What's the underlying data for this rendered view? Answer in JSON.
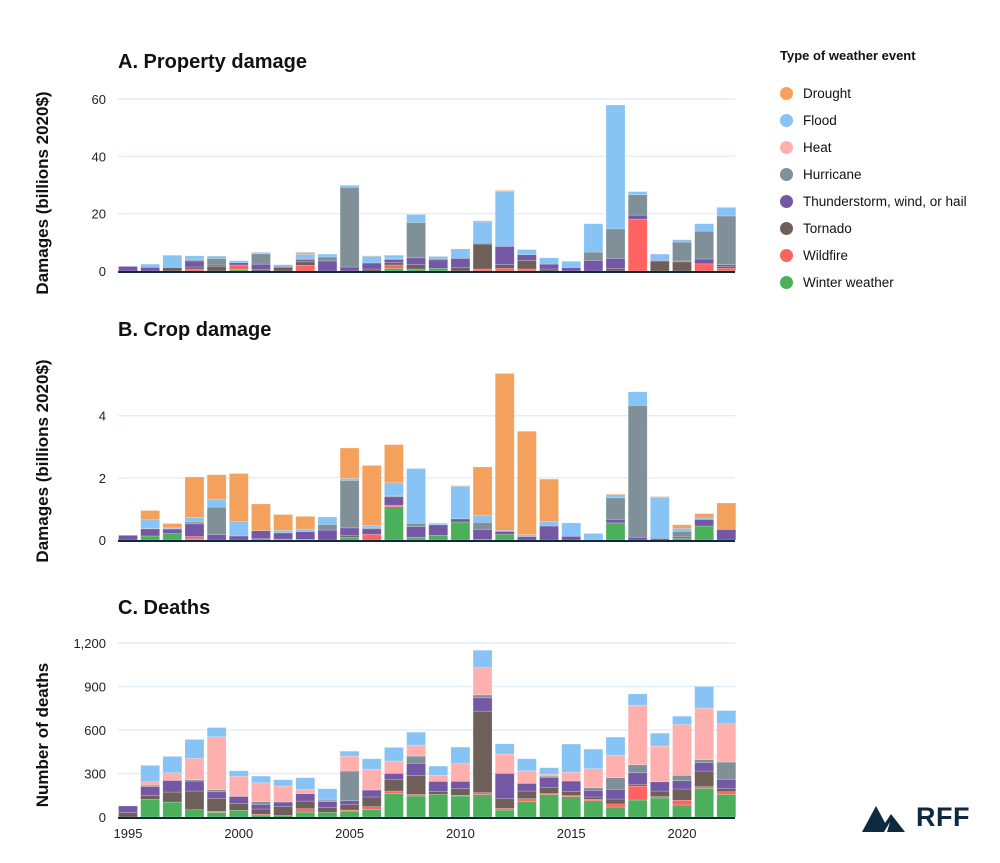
{
  "legend": {
    "title": "Type of weather event",
    "items": [
      {
        "label": "Drought",
        "color": "#f4a15d"
      },
      {
        "label": "Flood",
        "color": "#87c3f4"
      },
      {
        "label": "Heat",
        "color": "#ffb0ae"
      },
      {
        "label": "Hurricane",
        "color": "#7f9098"
      },
      {
        "label": "Thunderstorm, wind, or hail",
        "color": "#7457a5"
      },
      {
        "label": "Tornado",
        "color": "#6e5f58"
      },
      {
        "label": "Wildfire",
        "color": "#ff6361"
      },
      {
        "label": "Winter weather",
        "color": "#4caf5b"
      }
    ]
  },
  "logo": {
    "text": "RFF",
    "color": "#0f2a3f"
  },
  "chart_data": [
    {
      "type": "bar",
      "stacked": true,
      "title": "A.  Property damage",
      "ylabel": "Damages (billions 2020$)",
      "ylim": [
        0,
        60
      ],
      "yticks": [
        {
          "v": 0,
          "label": "0"
        },
        {
          "v": 20,
          "label": "20"
        },
        {
          "v": 40,
          "label": "40"
        },
        {
          "v": 60,
          "label": "60"
        }
      ],
      "grid": true,
      "x": [
        1995,
        1996,
        1997,
        1998,
        1999,
        2000,
        2001,
        2002,
        2003,
        2004,
        2005,
        2006,
        2007,
        2008,
        2009,
        2010,
        2011,
        2012,
        2013,
        2014,
        2015,
        2016,
        2017,
        2018,
        2019,
        2020,
        2021,
        2022
      ],
      "series": [
        {
          "name": "Winter weather",
          "values": [
            0,
            0,
            0,
            0,
            0,
            0.6,
            0,
            0,
            0,
            0,
            0,
            0,
            0.9,
            0.7,
            0.9,
            0,
            0,
            0,
            0,
            0,
            0,
            0,
            0,
            0,
            0,
            0,
            0,
            0
          ]
        },
        {
          "name": "Wildfire",
          "values": [
            0,
            0,
            0,
            0.7,
            0,
            1.5,
            0,
            0,
            2.0,
            0,
            0,
            0,
            1.2,
            0,
            0,
            0,
            0.7,
            0.9,
            0.7,
            0,
            0,
            0,
            0,
            18.1,
            0,
            0,
            2.5,
            0.9
          ]
        },
        {
          "name": "Tornado",
          "values": [
            0,
            0,
            1.2,
            0.7,
            1.6,
            0,
            0.6,
            1.2,
            1.2,
            0,
            0,
            0.7,
            0.8,
            1.5,
            0,
            1.3,
            8.7,
            1.3,
            3.0,
            0.7,
            0,
            0,
            0.9,
            0,
            3.5,
            3.2,
            0,
            0.7
          ]
        },
        {
          "name": "Thunderstorm, wind, or hail",
          "values": [
            1.6,
            1.3,
            0,
            2.1,
            0.5,
            0.8,
            1.8,
            0.4,
            0.7,
            3.5,
            1.4,
            2.1,
            1.1,
            2.4,
            3.0,
            3.1,
            0.3,
            6.4,
            2.0,
            1.7,
            1.2,
            3.7,
            3.5,
            1.4,
            0.2,
            0.3,
            1.7,
            0.6
          ]
        },
        {
          "name": "Hurricane",
          "values": [
            0,
            0,
            0,
            0.4,
            2.3,
            0,
            3.6,
            0,
            0.5,
            1.4,
            27.8,
            0,
            0.3,
            12.3,
            0.5,
            0,
            0,
            0,
            0,
            0,
            0,
            2.9,
            10.3,
            7.1,
            0,
            6.6,
            9.7,
            17
          ]
        },
        {
          "name": "Heat",
          "values": [
            0,
            0,
            0,
            0,
            0,
            0,
            0,
            0,
            0,
            0,
            0,
            0,
            0,
            0,
            0,
            0,
            0,
            0,
            0,
            0,
            0,
            0,
            0,
            0,
            0,
            0,
            0,
            0
          ]
        },
        {
          "name": "Flood",
          "values": [
            0,
            1.1,
            4.3,
            1.4,
            0.8,
            0.7,
            0.5,
            0.6,
            1.5,
            1.0,
            0.7,
            2.4,
            1.2,
            2.8,
            0.7,
            3.3,
            7.4,
            19.1,
            1.8,
            2.2,
            2.2,
            9.9,
            43.2,
            1.1,
            2.2,
            0.8,
            2.6,
            3.0
          ]
        },
        {
          "name": "Drought",
          "values": [
            0,
            0,
            0,
            0,
            0,
            0,
            0,
            0,
            0.6,
            0,
            0,
            0.1,
            0,
            0,
            0,
            0,
            0.4,
            0.4,
            0,
            0,
            0,
            0,
            0,
            0,
            0,
            0,
            0,
            0
          ]
        }
      ]
    },
    {
      "type": "bar",
      "stacked": true,
      "title": "B.  Crop damage",
      "ylabel": "Damages (billions 2020$)",
      "ylim": [
        0,
        5.6
      ],
      "yticks": [
        {
          "v": 0,
          "label": "0"
        },
        {
          "v": 2,
          "label": "2"
        },
        {
          "v": 4,
          "label": "4"
        }
      ],
      "grid": true,
      "x": [
        1995,
        1996,
        1997,
        1998,
        1999,
        2000,
        2001,
        2002,
        2003,
        2004,
        2005,
        2006,
        2007,
        2008,
        2009,
        2010,
        2011,
        2012,
        2013,
        2014,
        2015,
        2016,
        2017,
        2018,
        2019,
        2020,
        2021,
        2022
      ],
      "series": [
        {
          "name": "Winter weather",
          "values": [
            0,
            0.13,
            0.21,
            0.03,
            0,
            0,
            0.04,
            0.03,
            0,
            0,
            0.09,
            0,
            1.07,
            0.09,
            0.15,
            0.58,
            0,
            0.18,
            0,
            0,
            0,
            0,
            0.55,
            0,
            0,
            0.05,
            0.45,
            0
          ]
        },
        {
          "name": "Wildfire",
          "values": [
            0,
            0,
            0,
            0.08,
            0,
            0,
            0,
            0,
            0.02,
            0,
            0,
            0.18,
            0.05,
            0,
            0,
            0,
            0,
            0,
            0,
            0,
            0,
            0,
            0,
            0,
            0,
            0,
            0,
            0
          ]
        },
        {
          "name": "Tornado",
          "values": [
            0,
            0,
            0,
            0,
            0,
            0,
            0,
            0,
            0,
            0,
            0.06,
            0,
            0,
            0,
            0,
            0,
            0.02,
            0,
            0,
            0,
            0,
            0,
            0,
            0,
            0,
            0,
            0,
            0
          ]
        },
        {
          "name": "Thunderstorm, wind, or hail",
          "values": [
            0.15,
            0.23,
            0.15,
            0.41,
            0.17,
            0.13,
            0.26,
            0.2,
            0.25,
            0.32,
            0.24,
            0.18,
            0.27,
            0.34,
            0.34,
            0.1,
            0.32,
            0.1,
            0.11,
            0.45,
            0.12,
            0,
            0.11,
            0.09,
            0.05,
            0.05,
            0.21,
            0.34
          ]
        },
        {
          "name": "Hurricane",
          "values": [
            0,
            0.02,
            0.01,
            0.06,
            0.89,
            0,
            0,
            0,
            0,
            0.18,
            1.53,
            0.03,
            0.03,
            0.11,
            0,
            0,
            0.23,
            0,
            0,
            0,
            0,
            0,
            0.7,
            4.24,
            0,
            0.18,
            0,
            0
          ]
        },
        {
          "name": "Heat",
          "values": [
            0,
            0,
            0,
            0,
            0,
            0,
            0,
            0,
            0,
            0,
            0,
            0,
            0,
            0,
            0,
            0,
            0,
            0,
            0,
            0,
            0,
            0,
            0,
            0,
            0,
            0,
            0,
            0
          ]
        },
        {
          "name": "Flood",
          "values": [
            0,
            0.27,
            0.02,
            0.15,
            0.24,
            0.46,
            0,
            0.08,
            0.08,
            0.24,
            0.06,
            0.08,
            0.42,
            1.76,
            0.03,
            1.05,
            0.22,
            0.03,
            0.06,
            0.14,
            0.43,
            0.21,
            0.1,
            0.44,
            1.33,
            0.09,
            0.05,
            0
          ]
        },
        {
          "name": "Drought",
          "values": [
            0,
            0.3,
            0.14,
            1.3,
            0.8,
            1.55,
            0.86,
            0.51,
            0.41,
            0,
            0.98,
            1.93,
            1.23,
            0,
            0.03,
            0.02,
            1.56,
            5.05,
            3.33,
            1.37,
            0,
            0,
            0.02,
            0,
            0.02,
            0.12,
            0.14,
            0.85
          ]
        }
      ]
    },
    {
      "type": "bar",
      "stacked": true,
      "title": "C.  Deaths",
      "ylabel": "Number of deaths",
      "ylim": [
        0,
        1200
      ],
      "yticks": [
        {
          "v": 0,
          "label": "0"
        },
        {
          "v": 300,
          "label": "300"
        },
        {
          "v": 600,
          "label": "600"
        },
        {
          "v": 900,
          "label": "900"
        },
        {
          "v": 1200,
          "label": "1,200"
        }
      ],
      "xticks": [
        {
          "v": 1995,
          "label": "1995"
        },
        {
          "v": 2000,
          "label": "2000"
        },
        {
          "v": 2005,
          "label": "2005"
        },
        {
          "v": 2010,
          "label": "2010"
        },
        {
          "v": 2015,
          "label": "2015"
        },
        {
          "v": 2020,
          "label": "2020"
        }
      ],
      "grid": true,
      "x": [
        1995,
        1996,
        1997,
        1998,
        1999,
        2000,
        2001,
        2002,
        2003,
        2004,
        2005,
        2006,
        2007,
        2008,
        2009,
        2010,
        2011,
        2012,
        2013,
        2014,
        2015,
        2016,
        2017,
        2018,
        2019,
        2020,
        2021,
        2022
      ],
      "series": [
        {
          "name": "Winter weather",
          "values": [
            0,
            122,
            103,
            50,
            32,
            46,
            14,
            11,
            34,
            32,
            41,
            50,
            163,
            145,
            156,
            145,
            154,
            48,
            108,
            154,
            140,
            112,
            69,
            117,
            131,
            83,
            197,
            156
          ]
        },
        {
          "name": "Wildfire",
          "values": [
            0,
            0,
            0,
            0,
            7,
            0,
            4,
            0,
            23,
            0,
            7,
            21,
            16,
            11,
            0,
            4,
            14,
            12,
            18,
            7,
            7,
            10,
            21,
            96,
            9,
            32,
            12,
            18
          ]
        },
        {
          "name": "Tornado",
          "values": [
            30,
            27,
            69,
            129,
            90,
            48,
            37,
            60,
            53,
            35,
            37,
            67,
            80,
            131,
            21,
            46,
            562,
            66,
            53,
            43,
            30,
            16,
            34,
            12,
            39,
            78,
            108,
            21
          ]
        },
        {
          "name": "Thunderstorm, wind, or hail",
          "values": [
            46,
            60,
            80,
            69,
            45,
            48,
            32,
            32,
            51,
            39,
            27,
            48,
            42,
            82,
            69,
            51,
            92,
            175,
            53,
            69,
            71,
            46,
            66,
            80,
            64,
            57,
            57,
            64
          ]
        },
        {
          "name": "Hurricane",
          "values": [
            0,
            11,
            0,
            9,
            14,
            0,
            19,
            5,
            0,
            11,
            205,
            0,
            0,
            51,
            0,
            0,
            20,
            0,
            0,
            9,
            0,
            18,
            81,
            55,
            0,
            37,
            21,
            120
          ]
        },
        {
          "name": "Heat",
          "values": [
            0,
            23,
            53,
            147,
            365,
            138,
            130,
            105,
            29,
            0,
            103,
            144,
            85,
            76,
            41,
            123,
            188,
            133,
            87,
            14,
            60,
            131,
            154,
            411,
            246,
            351,
            355,
            264
          ]
        },
        {
          "name": "Flood",
          "values": [
            0,
            113,
            113,
            131,
            64,
            39,
            46,
            44,
            81,
            78,
            34,
            72,
            94,
            89,
            64,
            113,
            120,
            71,
            83,
            44,
            195,
            135,
            126,
            78,
            89,
            57,
            150,
            91
          ]
        },
        {
          "name": "Drought",
          "values": [
            0,
            0,
            0,
            0,
            0,
            0,
            0,
            0,
            0,
            0,
            0,
            0,
            0,
            0,
            0,
            0,
            0,
            0,
            0,
            0,
            0,
            0,
            0,
            0,
            0,
            0,
            0,
            0
          ]
        }
      ]
    }
  ]
}
